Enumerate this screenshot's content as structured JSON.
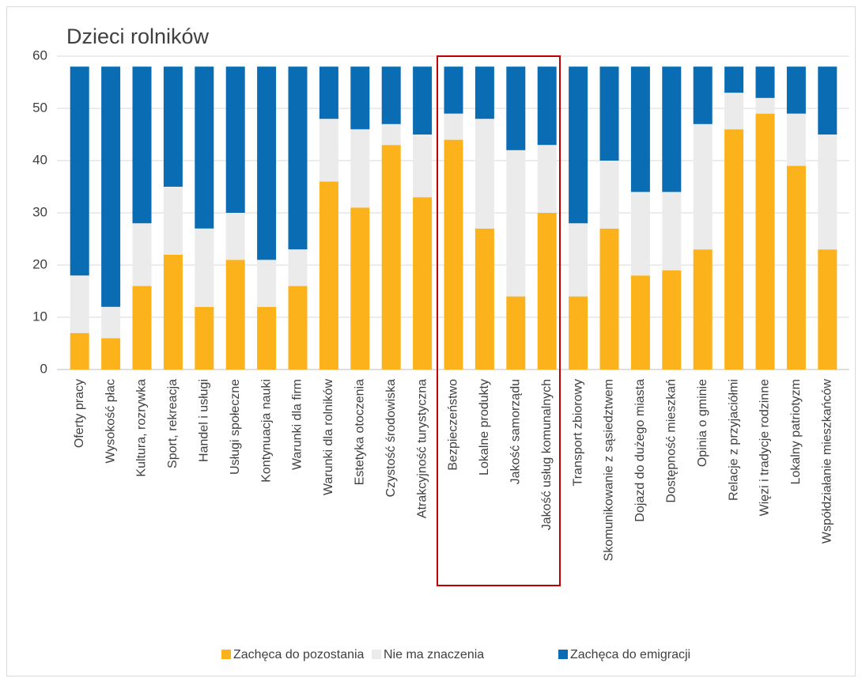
{
  "chart_data": {
    "type": "stacked_bar",
    "title": "Dzieci rolników",
    "categories": [
      "Oferty pracy",
      "Wysokość płac",
      "Kultura, rozrywka",
      "Sport, rekreacja",
      "Handel i usługi",
      "Usługi społeczne",
      "Kontynuacja nauki",
      "Warunki dla firm",
      "Warunki dla rolników",
      "Estetyka otoczenia",
      "Czystość środowiska",
      "Atrakcyjność turystyczna",
      "Bezpieczeństwo",
      "Lokalne produkty",
      "Jakość samorządu",
      "Jakość usług komunalnych",
      "Transport zbiorowy",
      "Skomunikowanie z sąsiedztwem",
      "Dojazd do dużego miasta",
      "Dostępność mieszkań",
      "Opinia o gminie",
      "Relacje z przyjaciółmi",
      "Więzi i tradycje rodzinne",
      "Lokalny patriotyzm",
      "Współdziałanie mieszkańców"
    ],
    "series": [
      {
        "name": "Zachęca do pozostania",
        "color": "#fbb21b",
        "values": [
          7,
          6,
          16,
          22,
          12,
          21,
          12,
          16,
          36,
          31,
          43,
          33,
          44,
          27,
          14,
          30,
          14,
          27,
          18,
          19,
          23,
          46,
          49,
          39,
          23
        ]
      },
      {
        "name": "Nie ma znaczenia",
        "color": "#ebebeb",
        "values": [
          11,
          6,
          12,
          13,
          15,
          9,
          9,
          7,
          12,
          15,
          4,
          12,
          5,
          21,
          28,
          13,
          14,
          13,
          16,
          15,
          24,
          7,
          3,
          10,
          22
        ]
      },
      {
        "name": "Zachęca do emigracji",
        "color": "#0a6db4",
        "values": [
          40,
          46,
          30,
          23,
          31,
          28,
          37,
          35,
          10,
          12,
          11,
          13,
          9,
          10,
          16,
          15,
          30,
          18,
          24,
          24,
          11,
          5,
          6,
          9,
          13
        ]
      }
    ],
    "ylim": [
      0,
      60
    ],
    "yticks": [
      0,
      10,
      20,
      30,
      40,
      50,
      60
    ],
    "grid": true,
    "legend": "bottom"
  }
}
